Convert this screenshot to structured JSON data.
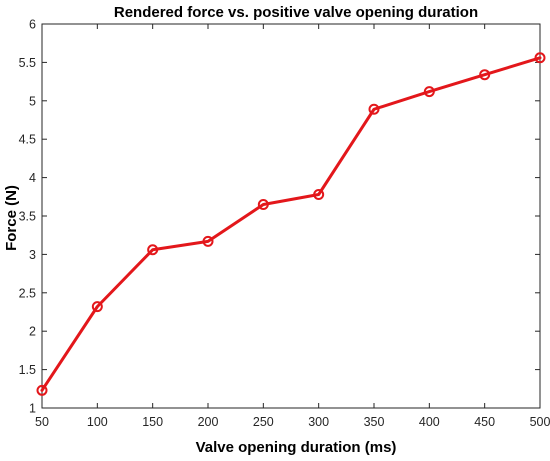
{
  "chart_data": {
    "type": "line",
    "title": "Rendered force vs. positive valve opening duration",
    "xlabel": "Valve opening duration (ms)",
    "ylabel": "Force (N)",
    "xlim": [
      50,
      500
    ],
    "ylim": [
      1,
      6
    ],
    "xticks": [
      50,
      100,
      150,
      200,
      250,
      300,
      350,
      400,
      450,
      500
    ],
    "yticks": [
      1,
      1.5,
      2,
      2.5,
      3,
      3.5,
      4,
      4.5,
      5,
      5.5,
      6
    ],
    "grid": false,
    "legend": "none",
    "series": [
      {
        "color": "#e3171b",
        "marker": "circle",
        "x": [
          50,
          100,
          150,
          200,
          250,
          300,
          350,
          400,
          450,
          500
        ],
        "y": [
          1.23,
          2.32,
          3.06,
          3.17,
          3.65,
          3.78,
          4.89,
          5.12,
          5.34,
          5.56
        ]
      }
    ]
  }
}
